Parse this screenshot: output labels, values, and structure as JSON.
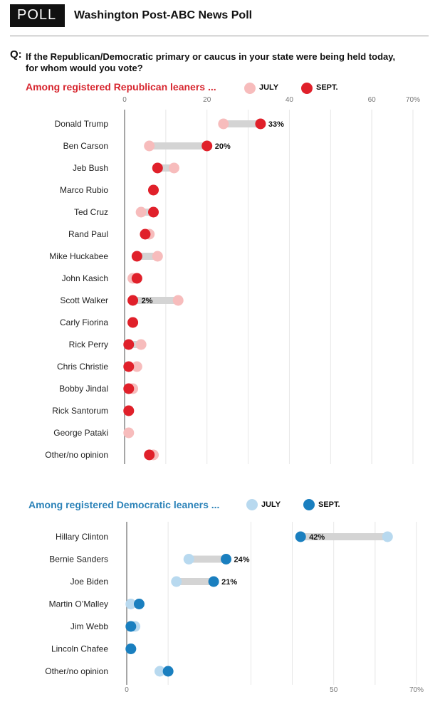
{
  "header": {
    "badge": "POLL",
    "title": "Washington Post-ABC News Poll"
  },
  "question": {
    "mark": "Q:",
    "text": "If the Republican/Democratic primary or caucus in your state were being held today, for whom would you vote?"
  },
  "legend": {
    "july": "JULY",
    "sept": "SEPT."
  },
  "colors": {
    "rep_sept": "#e0202a",
    "rep_july": "#f7bcbc",
    "dem_sept": "#1a7fbf",
    "dem_july": "#b8d9ef",
    "bar": "#d4d4d4",
    "rep_title": "#d7262f",
    "dem_title": "#2b82b8"
  },
  "chart_data": [
    {
      "type": "dot",
      "title": "Among registered Republican leaners ...",
      "xlim": [
        0,
        70
      ],
      "ticks": [
        "0",
        "20",
        "40",
        "60",
        "70%"
      ],
      "tick_values": [
        0,
        20,
        40,
        60,
        70
      ],
      "gridlines": [
        10,
        30,
        50,
        60
      ],
      "series": [
        {
          "name": "JULY"
        },
        {
          "name": "SEPT."
        }
      ],
      "rows": [
        {
          "label": "Donald Trump",
          "july": 24,
          "sept": 33,
          "value_label": "33%"
        },
        {
          "label": "Ben Carson",
          "july": 6,
          "sept": 20,
          "value_label": "20%"
        },
        {
          "label": "Jeb Bush",
          "july": 12,
          "sept": 8,
          "value_label": ""
        },
        {
          "label": "Marco Rubio",
          "july": 7,
          "sept": 7,
          "value_label": ""
        },
        {
          "label": "Ted Cruz",
          "july": 4,
          "sept": 7,
          "value_label": ""
        },
        {
          "label": "Rand Paul",
          "july": 6,
          "sept": 5,
          "value_label": ""
        },
        {
          "label": "Mike Huckabee",
          "july": 8,
          "sept": 3,
          "value_label": ""
        },
        {
          "label": "John Kasich",
          "july": 2,
          "sept": 3,
          "value_label": ""
        },
        {
          "label": "Scott Walker",
          "july": 13,
          "sept": 2,
          "value_label": "2%"
        },
        {
          "label": "Carly Fiorina",
          "july": 2,
          "sept": 2,
          "value_label": ""
        },
        {
          "label": "Rick Perry",
          "july": 4,
          "sept": 1,
          "value_label": ""
        },
        {
          "label": "Chris Christie",
          "july": 3,
          "sept": 1,
          "value_label": ""
        },
        {
          "label": "Bobby Jindal",
          "july": 2,
          "sept": 1,
          "value_label": ""
        },
        {
          "label": "Rick Santorum",
          "july": 1,
          "sept": 1,
          "value_label": ""
        },
        {
          "label": "George Pataki",
          "july": 1,
          "sept": null,
          "value_label": ""
        },
        {
          "label": "Other/no opinion",
          "july": 7,
          "sept": 6,
          "value_label": ""
        }
      ]
    },
    {
      "type": "dot",
      "title": "Among registered Democratic leaners ...",
      "xlim": [
        0,
        70
      ],
      "ticks": [
        "0",
        "50",
        "70%"
      ],
      "tick_values": [
        0,
        50,
        70
      ],
      "gridlines": [
        10,
        30,
        40,
        60
      ],
      "series": [
        {
          "name": "JULY"
        },
        {
          "name": "SEPT."
        }
      ],
      "rows": [
        {
          "label": "Hillary Clinton",
          "july": 63,
          "sept": 42,
          "value_label": "42%"
        },
        {
          "label": "Bernie Sanders",
          "july": 15,
          "sept": 24,
          "value_label": "24%"
        },
        {
          "label": "Joe Biden",
          "july": 12,
          "sept": 21,
          "value_label": "21%"
        },
        {
          "label": "Martin O’Malley",
          "july": 1,
          "sept": 3,
          "value_label": ""
        },
        {
          "label": "Jim Webb",
          "july": 2,
          "sept": 1,
          "value_label": ""
        },
        {
          "label": "Lincoln Chafee",
          "july": 1,
          "sept": 1,
          "value_label": ""
        },
        {
          "label": "Other/no opinion",
          "july": 8,
          "sept": 10,
          "value_label": ""
        }
      ]
    }
  ]
}
